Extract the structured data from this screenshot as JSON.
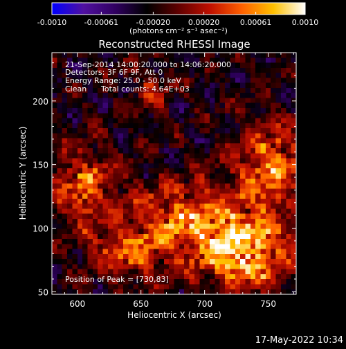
{
  "colorbar": {
    "tick_labels": [
      "-0.0010",
      "-0.00061",
      "-0.00020",
      "0.00020",
      "0.00061",
      "0.0010"
    ],
    "tick_values": [
      -0.001,
      -0.00061,
      -0.0002,
      0.0002,
      0.00061,
      0.001
    ],
    "range": [
      -0.001,
      0.001
    ],
    "unit_label": "(photons cm⁻² s⁻¹ asec⁻²)",
    "colors": [
      "#0000ff",
      "#5010a0",
      "#300060",
      "#000000",
      "#600000",
      "#c01000",
      "#ff6000",
      "#ffc000",
      "#ffffff"
    ]
  },
  "chart_data": {
    "type": "heatmap",
    "title": "Reconstructed RHESSI Image",
    "xlabel": "Heliocentric X (arcsec)",
    "ylabel": "Heliocentric Y (arcsec)",
    "xlim": [
      580,
      772
    ],
    "ylim": [
      48,
      238
    ],
    "xticks": [
      600,
      650,
      700,
      750
    ],
    "yticks": [
      50,
      100,
      150,
      200
    ],
    "xtick_labels": [
      "600",
      "650",
      "700",
      "750"
    ],
    "ytick_labels": [
      "50",
      "100",
      "150",
      "200"
    ],
    "annotations": {
      "line1": "21-Sep-2014 14:00:20.000 to 14:06:20.000",
      "line2": "Detectors: 3F 6F 9F, Att 0",
      "line3": "Energy Range: 25.0 - 50.0 keV",
      "line4_method": "Clean",
      "line4_counts": "Total counts: 4.64E+03",
      "peak": "Position of Peak = [730,83]"
    },
    "sources": [
      {
        "x": 730,
        "y": 83,
        "amp": 0.001,
        "sx": 26,
        "sy": 22
      },
      {
        "x": 680,
        "y": 108,
        "amp": 0.00065,
        "sx": 28,
        "sy": 20
      },
      {
        "x": 752,
        "y": 150,
        "amp": 0.0007,
        "sx": 20,
        "sy": 24
      },
      {
        "x": 605,
        "y": 132,
        "amp": 0.0006,
        "sx": 18,
        "sy": 22
      },
      {
        "x": 640,
        "y": 80,
        "amp": 0.00055,
        "sx": 20,
        "sy": 14
      },
      {
        "x": 658,
        "y": 205,
        "amp": 0.0004,
        "sx": 10,
        "sy": 10
      }
    ]
  },
  "footer": {
    "timestamp": "17-May-2022 10:34"
  }
}
